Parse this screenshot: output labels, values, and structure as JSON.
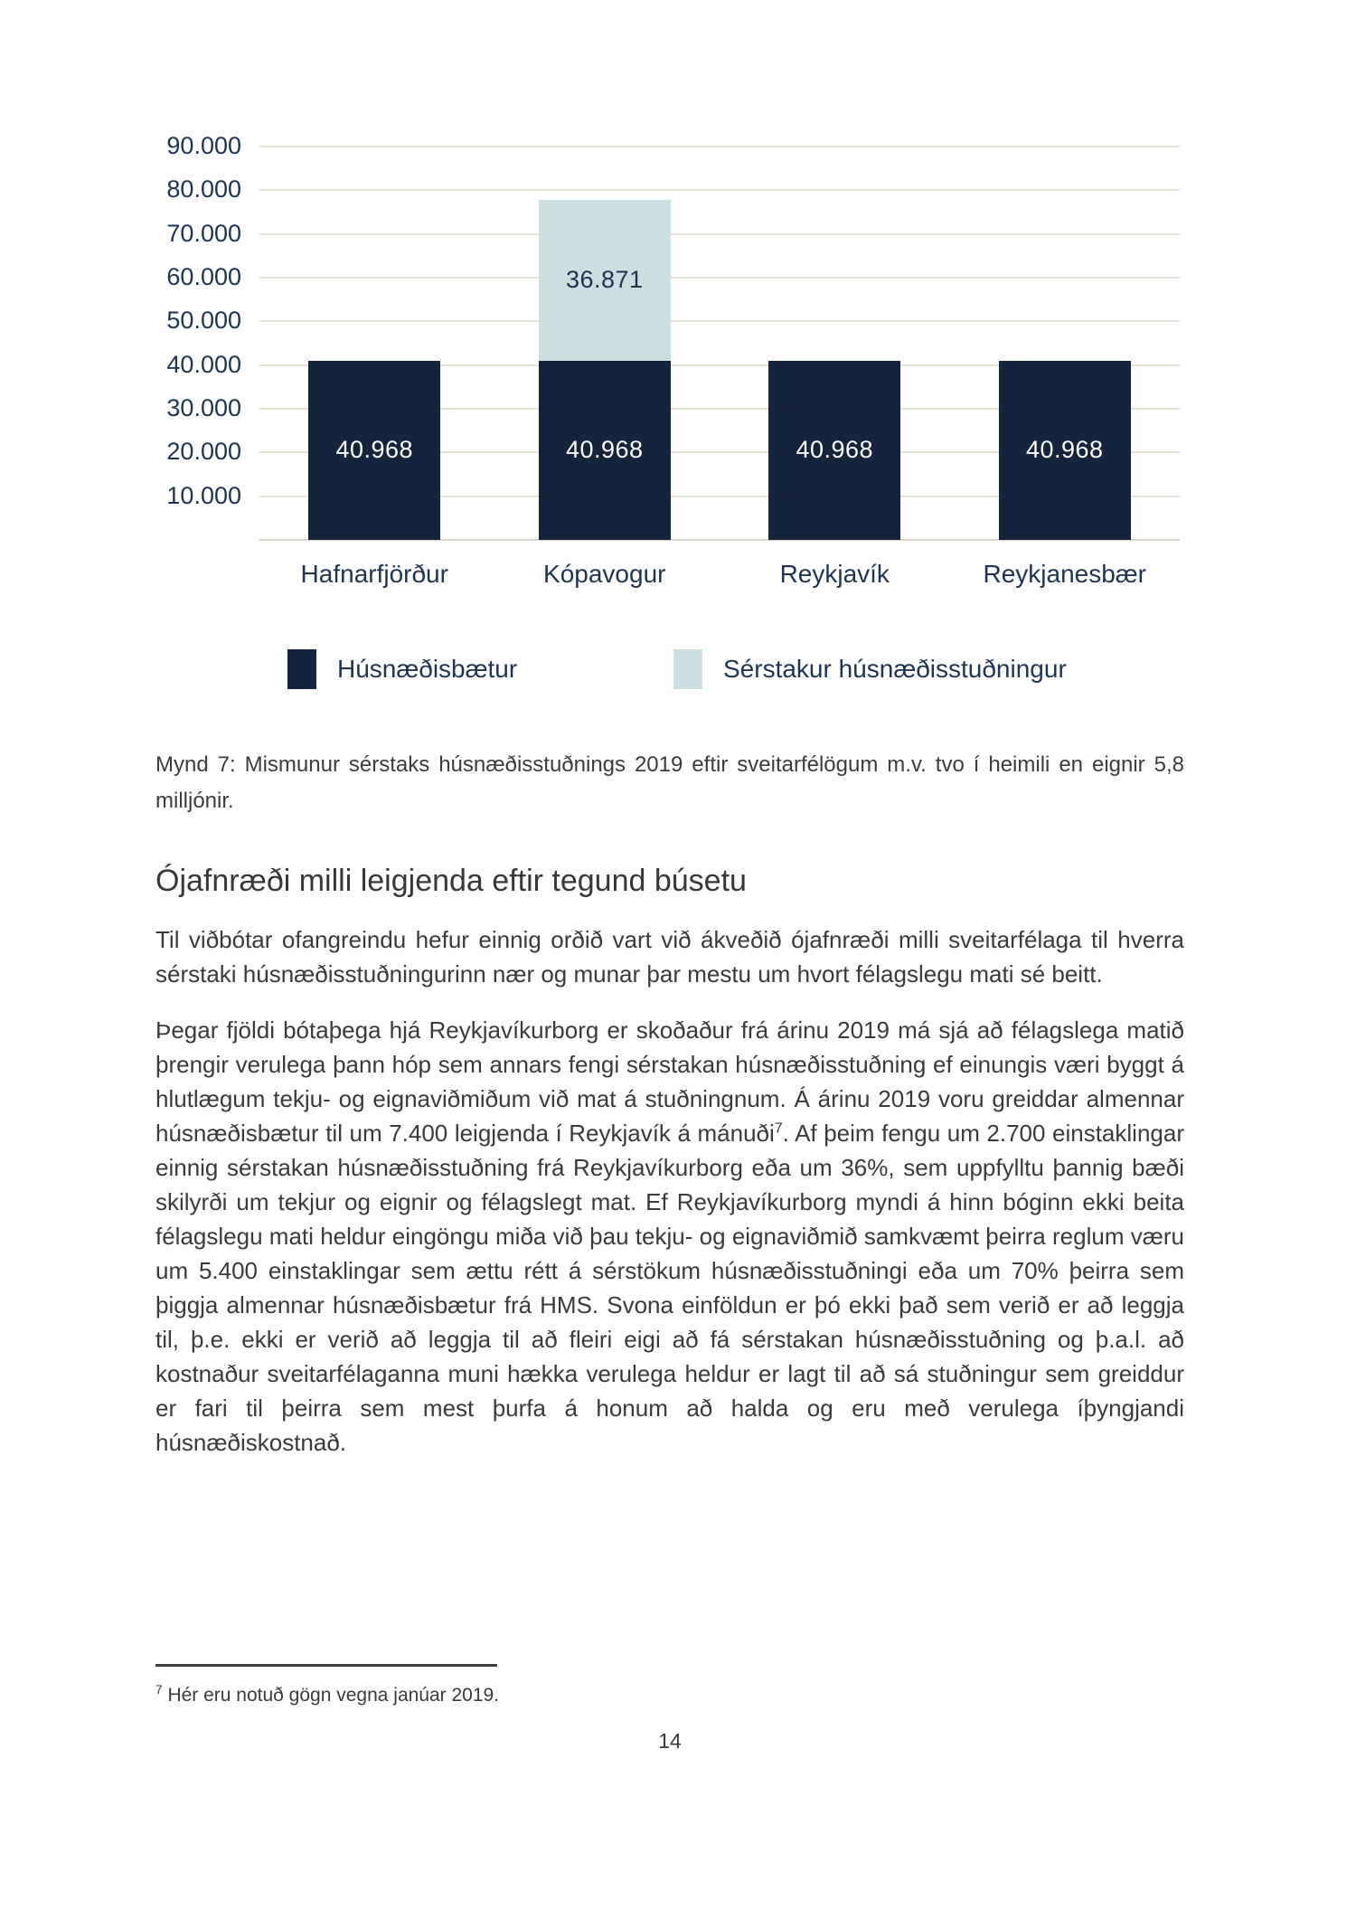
{
  "chart_data": {
    "type": "bar",
    "stacked": true,
    "categories": [
      "Hafnarfjörður",
      "Kópavogur",
      "Reykjavík",
      "Reykjanesbær"
    ],
    "series": [
      {
        "name": "Húsnæðisbætur",
        "color": "#15243d",
        "label_color": "#ffffff",
        "values": [
          40968,
          40968,
          40968,
          40968
        ],
        "labels": [
          "40.968",
          "40.968",
          "40.968",
          "40.968"
        ]
      },
      {
        "name": "Sérstakur húsnæðisstuðningur",
        "color": "#cbdee0",
        "label_color": "#203351",
        "values": [
          0,
          36871,
          0,
          0
        ],
        "labels": [
          "",
          "36.871",
          "",
          ""
        ]
      }
    ],
    "ylim": [
      0,
      90000
    ],
    "y_ticks": [
      {
        "value": 90000,
        "label": "90.000"
      },
      {
        "value": 80000,
        "label": "80.000"
      },
      {
        "value": 70000,
        "label": "70.000"
      },
      {
        "value": 60000,
        "label": "60.000"
      },
      {
        "value": 50000,
        "label": "50.000"
      },
      {
        "value": 40000,
        "label": "40.000"
      },
      {
        "value": 30000,
        "label": "30.000"
      },
      {
        "value": 20000,
        "label": "20.000"
      },
      {
        "value": 10000,
        "label": "10.000"
      }
    ],
    "grid": true,
    "grid_color": "#e8e2d6",
    "legend_position": "bottom",
    "title": ""
  },
  "caption": "Mynd 7: Mismunur sérstaks húsnæðisstuðnings 2019 eftir sveitarfélögum m.v. tvo í heimili en eignir 5,8 milljónir.",
  "heading": "Ójafnræði milli leigjenda eftir tegund búsetu",
  "paragraphs": {
    "p1": "Til viðbótar ofangreindu hefur einnig orðið vart við ákveðið ójafnræði milli sveitarfélaga til hverra sérstaki húsnæðisstuðningurinn nær og munar þar mestu um hvort félagslegu mati sé beitt.",
    "p2_before": "Þegar fjöldi bótaþega hjá Reykjavíkurborg er skoðaður frá árinu 2019 má sjá að félagslega matið þrengir verulega þann hóp sem annars fengi sérstakan húsnæðisstuðning ef einungis væri byggt á hlutlægum tekju- og eignaviðmiðum við mat á stuðningnum. Á árinu 2019 voru greiddar almennar húsnæðisbætur til um 7.400 leigjenda í Reykjavík á mánuði",
    "p2_sup": "7",
    "p2_after": ". Af þeim fengu um 2.700 einstaklingar einnig sérstakan húsnæðisstuðning frá Reykjavíkurborg eða um 36%, sem uppfylltu þannig bæði skilyrði um tekjur og eignir og félagslegt mat. Ef Reykjavíkurborg myndi á hinn bóginn ekki beita félagslegu mati heldur eingöngu miða við þau tekju- og eignaviðmið samkvæmt þeirra reglum væru um 5.400 einstaklingar sem ættu rétt á sérstökum húsnæðisstuðningi eða um 70% þeirra sem þiggja almennar húsnæðisbætur frá HMS. Svona einföldun er þó ekki það sem verið er að leggja til, þ.e. ekki er verið að leggja til að fleiri eigi að fá sérstakan húsnæðisstuðning og þ.a.l. að kostnaður sveitarfélaganna muni hækka verulega heldur er lagt til að sá stuðningur sem greiddur er fari til þeirra sem mest þurfa á honum að halda og eru með verulega íþyngjandi húsnæðiskostnað."
  },
  "footnote": {
    "marker": "7",
    "text": "Hér eru notuð gögn vegna janúar 2019."
  },
  "page_number": "14"
}
